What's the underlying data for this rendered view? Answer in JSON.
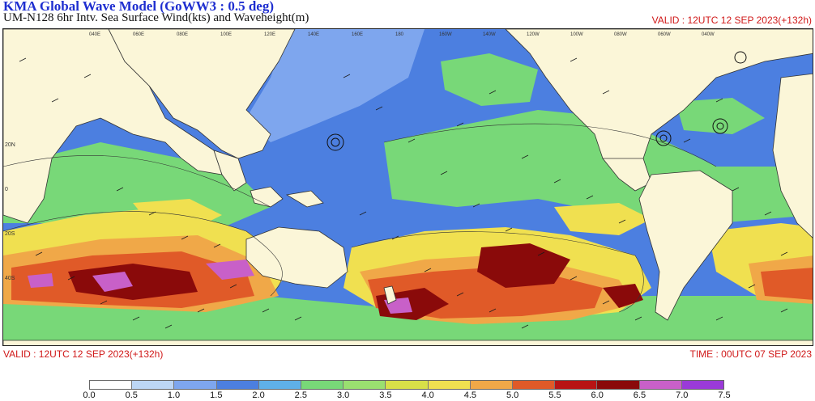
{
  "header": {
    "title": "KMA  Global Wave Model (GoWW3 : 0.5 deg)",
    "subtitle": "UM-N128  6hr Intv. Sea Surface Wind(kts) and Waveheight(m)",
    "valid_top": "VALID : 12UTC 12 SEP 2023(+132h)"
  },
  "footer": {
    "valid": "VALID : 12UTC 12 SEP 2023(+132h)",
    "time": "TIME : 00UTC 07 SEP 2023"
  },
  "legend": {
    "ticks": [
      "0.0",
      "0.5",
      "1.0",
      "1.5",
      "2.0",
      "2.5",
      "3.0",
      "3.5",
      "4.0",
      "4.5",
      "5.0",
      "5.5",
      "6.0",
      "6.5",
      "7.0",
      "7.5"
    ],
    "colors": [
      "#ffffff",
      "#bcd6f5",
      "#7ea6ee",
      "#4c7fe0",
      "#5fb0e8",
      "#78d878",
      "#9ae070",
      "#d8e048",
      "#f0e050",
      "#f0a848",
      "#e05a28",
      "#b81414",
      "#8a0a0a",
      "#c860c8",
      "#9a3ad8"
    ]
  },
  "map": {
    "ocean_base": "#4c7fe0",
    "land": "#fbf6d8",
    "lat_labels": [
      "20N",
      "0",
      "20S",
      "40S"
    ],
    "lon_labels": [
      "040E",
      "060E",
      "080E",
      "100E",
      "120E",
      "140E",
      "160E",
      "180",
      "160W",
      "140W",
      "120W",
      "100W",
      "080W",
      "060W",
      "040W"
    ]
  }
}
